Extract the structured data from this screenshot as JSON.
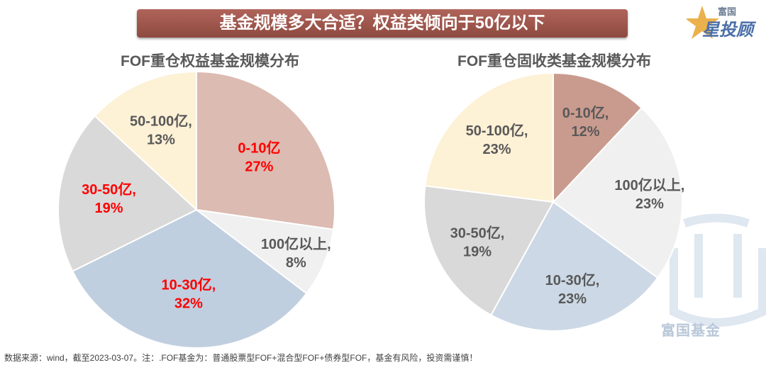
{
  "banner": "基金规模多大合适？权益类倾向于50亿以下",
  "logo": {
    "small": "富国",
    "big": "星投顾"
  },
  "watermark": "富国基金",
  "footnote": "数据来源：wind，截至2023-03-07。注：.FOF基金为：普通股票型FOF+混合型FOF+债券型FOF，基金有风险，投资需谨慎！",
  "colors": {
    "red": "#ff0000",
    "gray_text": "#595959",
    "banner": "#9c5248"
  },
  "chart_data": [
    {
      "type": "pie",
      "title": "FOF重仓权益基金规模分布",
      "slices": [
        {
          "category": "0-10亿",
          "label": "27%",
          "value": 27,
          "color": "#dcbbb2",
          "highlight": true
        },
        {
          "category": "100亿以上,",
          "label": "8%",
          "value": 8,
          "color": "#f0f0f0",
          "highlight": false
        },
        {
          "category": "10-30亿,",
          "label": "32%",
          "value": 32,
          "color": "#c0cfdf",
          "highlight": true
        },
        {
          "category": "30-50亿,",
          "label": "19%",
          "value": 19,
          "color": "#d9d9d9",
          "highlight": true
        },
        {
          "category": "50-100亿,",
          "label": "13%",
          "value": 13,
          "color": "#fdf1d6",
          "highlight": false
        }
      ]
    },
    {
      "type": "pie",
      "title": "FOF重仓固收类基金规模分布",
      "slices": [
        {
          "category": "0-10亿,",
          "label": "12%",
          "value": 12,
          "color": "#c99b8e",
          "highlight": false
        },
        {
          "category": "100亿以上,",
          "label": "23%",
          "value": 23,
          "color": "#f0f0f0",
          "highlight": false
        },
        {
          "category": "10-30亿,",
          "label": "23%",
          "value": 23,
          "color": "#ccd8e5",
          "highlight": false
        },
        {
          "category": "30-50亿,",
          "label": "19%",
          "value": 19,
          "color": "#d9d9d9",
          "highlight": false
        },
        {
          "category": "50-100亿,",
          "label": "23%",
          "value": 23,
          "color": "#fdf1d6",
          "highlight": false
        }
      ]
    }
  ]
}
